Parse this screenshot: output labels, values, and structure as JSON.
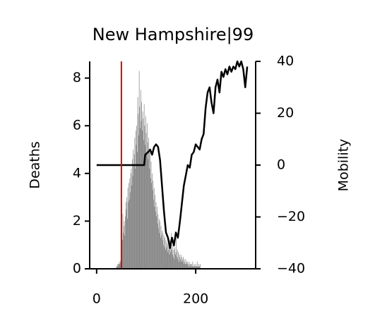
{
  "chart_data": {
    "type": "bar_line",
    "title": "New Hampshire|99",
    "ylabel": "Deaths",
    "y2label": "Mobility",
    "xlim": [
      -14,
      321
    ],
    "xticks": [
      0,
      200
    ],
    "ylim": [
      0,
      8.7
    ],
    "yticks": [
      0,
      2,
      4,
      6,
      8
    ],
    "y2lim": [
      -40,
      40
    ],
    "y2ticks": [
      {
        "value": -40,
        "label": "−40"
      },
      {
        "value": -20,
        "label": "−20"
      },
      0,
      20,
      40
    ],
    "vline": {
      "x": 50,
      "color": "#e00000"
    },
    "series": [
      {
        "name": "Deaths",
        "color": "#808080",
        "x": [
          40,
          41,
          42,
          43,
          44,
          45,
          46,
          47,
          48,
          49,
          50,
          51,
          52,
          53,
          54,
          55,
          56,
          57,
          58,
          59,
          60,
          61,
          62,
          63,
          64,
          65,
          66,
          67,
          68,
          69,
          70,
          71,
          72,
          73,
          74,
          75,
          76,
          77,
          78,
          79,
          80,
          81,
          82,
          83,
          84,
          85,
          86,
          87,
          88,
          89,
          90,
          91,
          92,
          93,
          94,
          95,
          96,
          97,
          98,
          99,
          100,
          101,
          102,
          103,
          104,
          105,
          106,
          107,
          108,
          109,
          110,
          111,
          112,
          113,
          114,
          115,
          116,
          117,
          118,
          119,
          120,
          121,
          122,
          123,
          124,
          125,
          126,
          127,
          128,
          129,
          130,
          131,
          132,
          133,
          134,
          135,
          136,
          137,
          138,
          139,
          140,
          141,
          142,
          143,
          144,
          145,
          146,
          147,
          148,
          149,
          150,
          151,
          152,
          153,
          154,
          155,
          156,
          157,
          158,
          159,
          160,
          161,
          162,
          163,
          164,
          165,
          166,
          167,
          168,
          169,
          170,
          171,
          172,
          173,
          174,
          175,
          176,
          177,
          178,
          179,
          180,
          181,
          182,
          183,
          184,
          185,
          186,
          187,
          188,
          189,
          190,
          191,
          192,
          193,
          194,
          195,
          196,
          197,
          198,
          199,
          200,
          201,
          202,
          203,
          204,
          205,
          206,
          207,
          208,
          209
        ],
        "values": [
          0.1,
          0.1,
          0.2,
          0.1,
          0.2,
          0.2,
          0.3,
          0.2,
          0.3,
          0.4,
          0.5,
          2.6,
          1.2,
          2.3,
          1.5,
          1.8,
          2.0,
          1.4,
          2.2,
          2.8,
          2.5,
          3.0,
          2.1,
          3.4,
          2.8,
          3.6,
          2.9,
          3.8,
          3.2,
          4.0,
          4.2,
          3.5,
          4.6,
          3.9,
          5.0,
          4.4,
          4.8,
          5.5,
          4.2,
          5.8,
          5.2,
          6.0,
          4.9,
          7.2,
          6.5,
          5.6,
          8.3,
          6.8,
          5.9,
          7.5,
          6.2,
          7.0,
          5.8,
          6.6,
          6.3,
          5.4,
          6.9,
          6.0,
          5.2,
          6.4,
          5.7,
          4.8,
          6.1,
          5.3,
          4.6,
          5.5,
          4.9,
          4.2,
          5.0,
          3.8,
          4.5,
          3.6,
          4.0,
          3.3,
          3.7,
          2.9,
          3.4,
          2.6,
          3.1,
          2.4,
          2.8,
          2.2,
          2.6,
          1.9,
          2.3,
          1.7,
          2.1,
          1.5,
          2.0,
          1.3,
          1.8,
          1.4,
          1.6,
          1.2,
          1.5,
          1.0,
          1.4,
          0.9,
          1.3,
          0.8,
          1.2,
          0.9,
          1.1,
          0.7,
          1.0,
          0.8,
          0.9,
          0.6,
          1.2,
          0.7,
          0.9,
          1.5,
          0.8,
          0.6,
          1.0,
          0.5,
          0.8,
          0.4,
          0.9,
          0.6,
          0.7,
          1.3,
          0.5,
          0.8,
          0.4,
          0.7,
          0.3,
          0.6,
          0.5,
          0.4,
          0.6,
          0.3,
          0.5,
          0.4,
          0.3,
          0.5,
          0.2,
          0.4,
          0.3,
          0.2,
          0.4,
          0.2,
          0.3,
          0.2,
          0.3,
          0.1,
          0.2,
          0.3,
          0.1,
          0.2,
          0.2,
          0.1,
          0.2,
          0.1,
          0.3,
          0.1,
          0.1,
          0.2,
          0.1,
          0.1,
          0.2,
          0.1,
          0.1,
          0.3,
          0.1,
          0.1,
          0.2,
          0.1,
          0.1,
          0.2
        ]
      },
      {
        "name": "Mobility",
        "color": "#000000",
        "axis": "y2",
        "x": [
          0,
          96,
          98,
          104,
          108,
          112,
          116,
          120,
          124,
          128,
          132,
          136,
          140,
          144,
          148,
          152,
          156,
          160,
          164,
          168,
          172,
          176,
          180,
          184,
          188,
          192,
          196,
          200,
          204,
          208,
          212,
          216,
          220,
          224,
          228,
          232,
          236,
          240,
          244,
          248,
          252,
          256,
          260,
          264,
          268,
          272,
          276,
          280,
          284,
          288,
          292,
          296,
          300,
          304
        ],
        "values": [
          0,
          0,
          4,
          5,
          6,
          4,
          7,
          8,
          7,
          2,
          -8,
          -18,
          -26,
          -28,
          -32,
          -28,
          -31,
          -26,
          -28,
          -22,
          -15,
          -8,
          -4,
          0,
          -1,
          4,
          5,
          8,
          7,
          6,
          10,
          12,
          22,
          28,
          30,
          24,
          20,
          30,
          33,
          28,
          36,
          34,
          37,
          35,
          38,
          36,
          38,
          37,
          40,
          38,
          40,
          37,
          30,
          38
        ]
      }
    ]
  }
}
